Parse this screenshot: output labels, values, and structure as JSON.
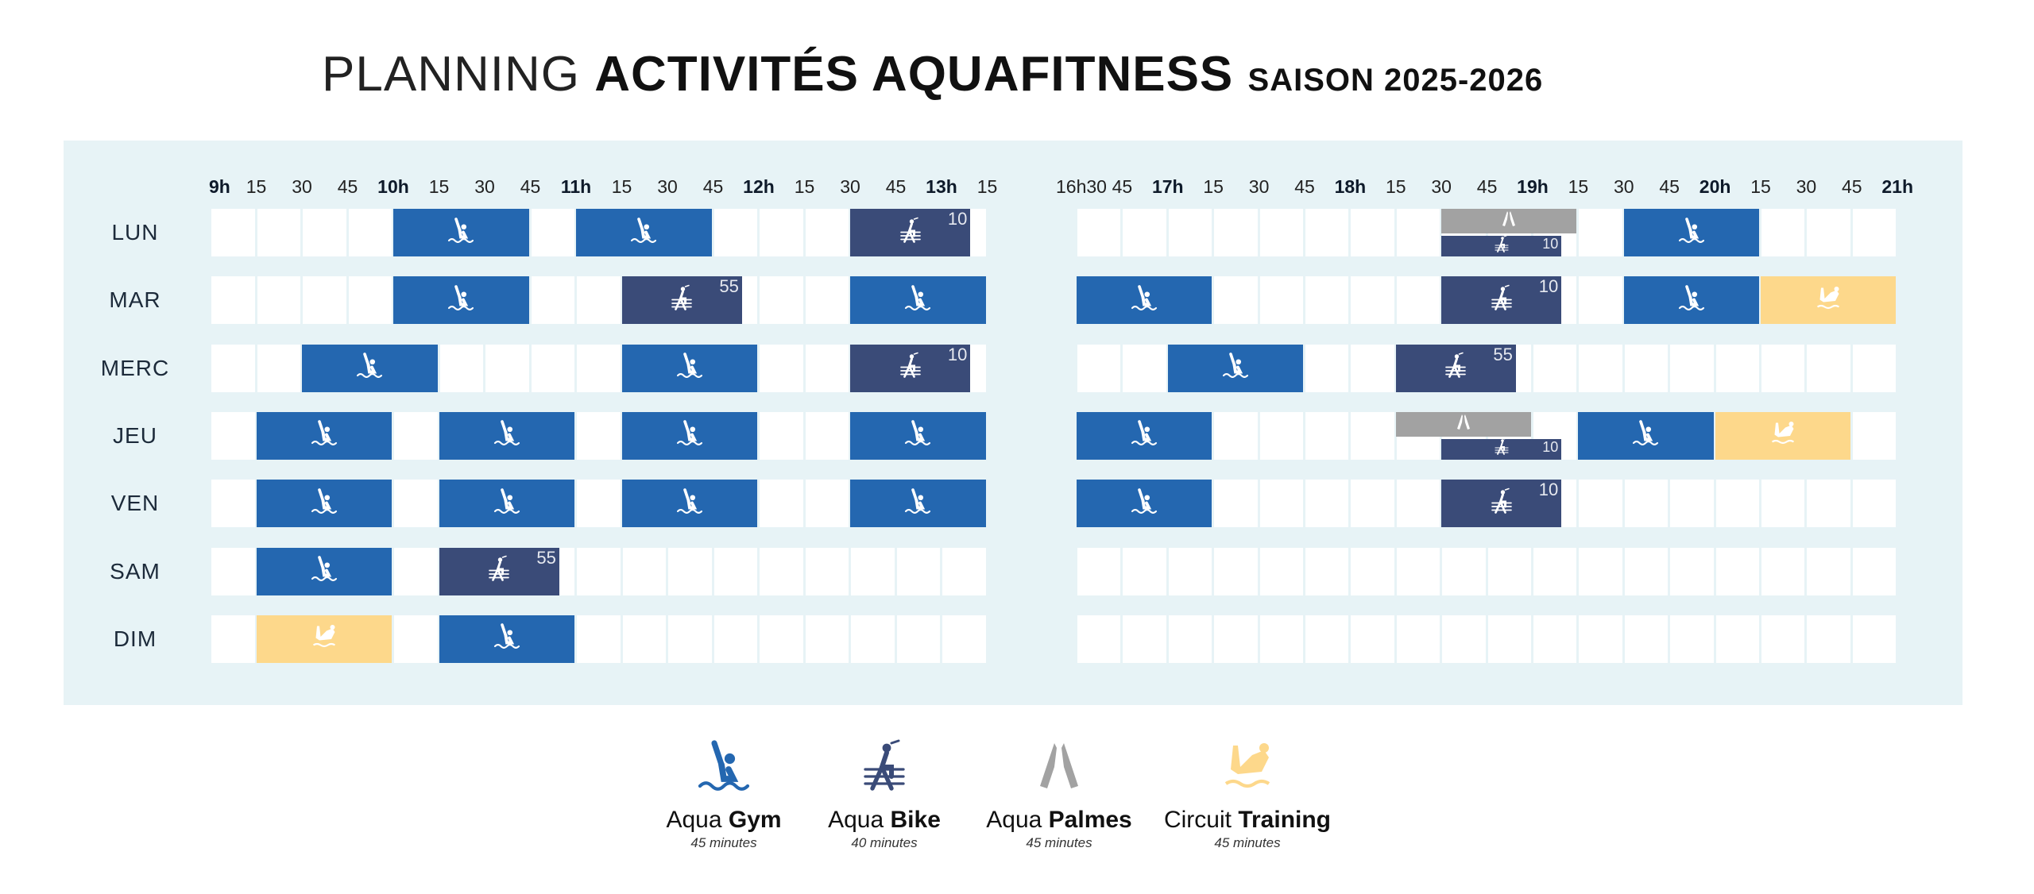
{
  "title": {
    "part1": "PLANNING",
    "part2": "ACTIVITÉS AQUAFITNESS",
    "part3": "SAISON 2025-2026"
  },
  "colors": {
    "gym": "#2467b0",
    "bike": "#3a4b78",
    "palmes": "#a2a2a2",
    "circuit": "#fdd88b",
    "panel": "#e7f3f6"
  },
  "grids": [
    {
      "name": "morning",
      "start": "9:00",
      "slots": 17,
      "labels": [
        [
          "9h",
          true
        ],
        [
          "15",
          false
        ],
        [
          "30",
          false
        ],
        [
          "45",
          false
        ],
        [
          "10h",
          true
        ],
        [
          "15",
          false
        ],
        [
          "30",
          false
        ],
        [
          "45",
          false
        ],
        [
          "11h",
          true
        ],
        [
          "15",
          false
        ],
        [
          "30",
          false
        ],
        [
          "45",
          false
        ],
        [
          "12h",
          true
        ],
        [
          "15",
          false
        ],
        [
          "30",
          false
        ],
        [
          "45",
          false
        ],
        [
          "13h",
          true
        ],
        [
          "15",
          false
        ]
      ]
    },
    {
      "name": "evening",
      "start": "16:30",
      "slots": 18,
      "labels": [
        [
          "16h30",
          false
        ],
        [
          "45",
          false
        ],
        [
          "17h",
          true
        ],
        [
          "15",
          false
        ],
        [
          "30",
          false
        ],
        [
          "45",
          false
        ],
        [
          "18h",
          true
        ],
        [
          "15",
          false
        ],
        [
          "30",
          false
        ],
        [
          "45",
          false
        ],
        [
          "19h",
          true
        ],
        [
          "15",
          false
        ],
        [
          "30",
          false
        ],
        [
          "45",
          false
        ],
        [
          "20h",
          true
        ],
        [
          "15",
          false
        ],
        [
          "30",
          false
        ],
        [
          "45",
          false
        ],
        [
          "21h",
          true
        ]
      ]
    }
  ],
  "days": [
    {
      "label": "LUN",
      "events": [
        {
          "type": "gym",
          "start": "10:00",
          "end": "10:45"
        },
        {
          "type": "gym",
          "start": "11:00",
          "end": "11:45"
        },
        {
          "type": "bike",
          "start": "12:30",
          "end": "13:10",
          "corner": "10"
        },
        {
          "type": "palmes",
          "start": "18:30",
          "end": "19:15",
          "half": "top"
        },
        {
          "type": "bike",
          "start": "18:30",
          "end": "19:10",
          "corner": "10",
          "half": "bottom"
        },
        {
          "type": "gym",
          "start": "19:30",
          "end": "20:15"
        }
      ]
    },
    {
      "label": "MAR",
      "events": [
        {
          "type": "gym",
          "start": "10:00",
          "end": "10:45"
        },
        {
          "type": "bike",
          "start": "11:15",
          "end": "11:55",
          "corner": "55"
        },
        {
          "type": "gym",
          "start": "12:30",
          "end": "13:15"
        },
        {
          "type": "gym",
          "start": "16:30",
          "end": "17:15"
        },
        {
          "type": "bike",
          "start": "18:30",
          "end": "19:10",
          "corner": "10"
        },
        {
          "type": "gym",
          "start": "19:30",
          "end": "20:15"
        },
        {
          "type": "circuit",
          "start": "20:15",
          "end": "21:00"
        }
      ]
    },
    {
      "label": "MERC",
      "events": [
        {
          "type": "gym",
          "start": "9:30",
          "end": "10:15"
        },
        {
          "type": "gym",
          "start": "11:15",
          "end": "12:00"
        },
        {
          "type": "bike",
          "start": "12:30",
          "end": "13:10",
          "corner": "10"
        },
        {
          "type": "gym",
          "start": "17:00",
          "end": "17:45"
        },
        {
          "type": "bike",
          "start": "18:15",
          "end": "18:55",
          "corner": "55"
        }
      ]
    },
    {
      "label": "JEU",
      "events": [
        {
          "type": "gym",
          "start": "9:15",
          "end": "10:00"
        },
        {
          "type": "gym",
          "start": "10:15",
          "end": "11:00"
        },
        {
          "type": "gym",
          "start": "11:15",
          "end": "12:00"
        },
        {
          "type": "gym",
          "start": "12:30",
          "end": "13:15"
        },
        {
          "type": "gym",
          "start": "16:30",
          "end": "17:15"
        },
        {
          "type": "palmes",
          "start": "18:15",
          "end": "19:00",
          "half": "top"
        },
        {
          "type": "bike",
          "start": "18:30",
          "end": "19:10",
          "corner": "10",
          "half": "bottom"
        },
        {
          "type": "gym",
          "start": "19:15",
          "end": "20:00"
        },
        {
          "type": "circuit",
          "start": "20:00",
          "end": "20:45"
        }
      ]
    },
    {
      "label": "VEN",
      "events": [
        {
          "type": "gym",
          "start": "9:15",
          "end": "10:00"
        },
        {
          "type": "gym",
          "start": "10:15",
          "end": "11:00"
        },
        {
          "type": "gym",
          "start": "11:15",
          "end": "12:00"
        },
        {
          "type": "gym",
          "start": "12:30",
          "end": "13:15"
        },
        {
          "type": "gym",
          "start": "16:30",
          "end": "17:15"
        },
        {
          "type": "bike",
          "start": "18:30",
          "end": "19:10",
          "corner": "10"
        }
      ]
    },
    {
      "label": "SAM",
      "events": [
        {
          "type": "gym",
          "start": "9:15",
          "end": "10:00"
        },
        {
          "type": "bike",
          "start": "10:15",
          "end": "10:55",
          "corner": "55"
        }
      ]
    },
    {
      "label": "DIM",
      "events": [
        {
          "type": "circuit",
          "start": "9:15",
          "end": "10:00"
        },
        {
          "type": "gym",
          "start": "10:15",
          "end": "11:00"
        }
      ]
    }
  ],
  "legend": [
    {
      "type": "gym",
      "light": "Aqua",
      "bold": "Gym",
      "duration": "45 minutes"
    },
    {
      "type": "bike",
      "light": "Aqua",
      "bold": "Bike",
      "duration": "40 minutes"
    },
    {
      "type": "palmes",
      "light": "Aqua",
      "bold": "Palmes",
      "duration": "45 minutes"
    },
    {
      "type": "circuit",
      "light": "Circuit",
      "bold": "Training",
      "duration": "45 minutes"
    }
  ]
}
